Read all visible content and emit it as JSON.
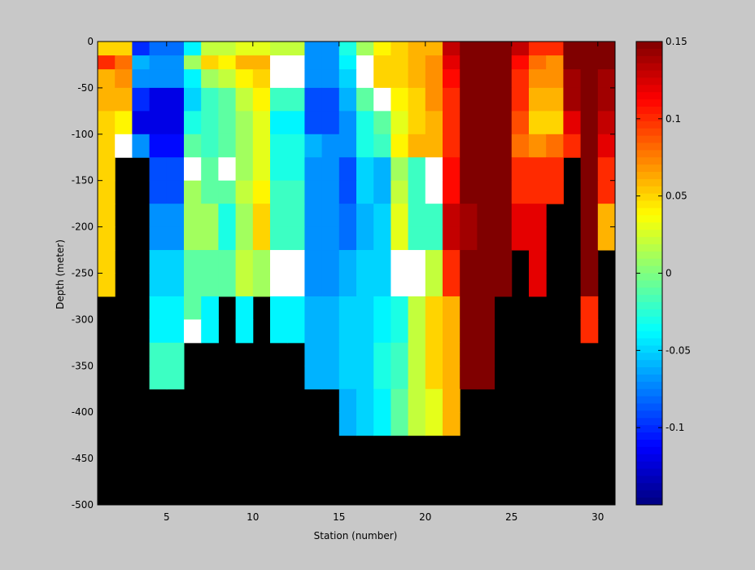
{
  "chart_data": {
    "type": "heatmap",
    "title": "",
    "xlabel": "Station (number)",
    "ylabel": "Depth (meter)",
    "xlim": [
      1,
      31
    ],
    "ylim": [
      -500,
      0
    ],
    "x_ticks": [
      5,
      10,
      15,
      20,
      25,
      30
    ],
    "y_ticks": [
      0,
      -50,
      -100,
      -150,
      -200,
      -250,
      -300,
      -350,
      -400,
      -450,
      -500
    ],
    "colorbar": {
      "colormap": "jet",
      "clim": [
        -0.15,
        0.15
      ],
      "ticks": [
        0.15,
        0.1,
        0.05,
        0,
        -0.05,
        -0.1
      ],
      "tick_labels": [
        "0.15",
        "0.1",
        "0.05",
        "0",
        "-0.05",
        "-0.1"
      ]
    },
    "colors": {
      "figure_background": "#c8c8c8",
      "no_data": "#000000",
      "center": "#ffffff"
    },
    "stations": [
      1,
      2,
      3,
      4,
      5,
      6,
      7,
      8,
      9,
      10,
      11,
      12,
      13,
      14,
      15,
      16,
      17,
      18,
      19,
      20,
      21,
      22,
      23,
      24,
      25,
      26,
      27,
      28,
      29,
      30,
      31
    ],
    "depths": [
      -2.5,
      -15,
      -30,
      -50,
      -75,
      -100,
      -125,
      -150,
      -175,
      -200,
      -225,
      -250,
      -275,
      -300,
      -325,
      -350,
      -375,
      -400,
      -425,
      -450,
      -475,
      -500
    ],
    "values": [
      [
        0.05,
        0.05,
        -0.1,
        -0.08,
        -0.08,
        -0.04,
        0.02,
        0.02,
        0.03,
        0.03,
        0.02,
        0.02,
        -0.07,
        -0.07,
        -0.03,
        0.01,
        0.04,
        0.05,
        0.06,
        0.06,
        0.13,
        0.15,
        0.15,
        0.15,
        0.13,
        0.1,
        0.1,
        0.15,
        0.15,
        0.15,
        0.06
      ],
      [
        0.1,
        0.08,
        -0.06,
        -0.07,
        -0.07,
        0.01,
        0.05,
        0.04,
        0.06,
        0.06,
        0.0,
        0.0,
        -0.07,
        -0.07,
        -0.04,
        0.0,
        0.05,
        0.05,
        0.06,
        0.07,
        0.12,
        0.15,
        0.15,
        0.15,
        0.11,
        0.08,
        0.07,
        0.15,
        0.15,
        0.15,
        0.05
      ],
      [
        0.06,
        0.07,
        -0.07,
        -0.07,
        -0.07,
        -0.04,
        0.01,
        0.02,
        0.04,
        0.05,
        0.0,
        0.0,
        -0.07,
        -0.07,
        -0.05,
        0.0,
        0.05,
        0.05,
        0.06,
        0.07,
        0.11,
        0.15,
        0.15,
        0.15,
        0.1,
        0.07,
        0.07,
        0.14,
        0.15,
        0.14,
        0.05
      ],
      [
        0.06,
        0.06,
        -0.1,
        -0.12,
        -0.12,
        -0.05,
        -0.02,
        -0.01,
        0.02,
        0.04,
        -0.02,
        -0.02,
        -0.09,
        -0.09,
        -0.06,
        -0.01,
        0.0,
        0.04,
        0.05,
        0.07,
        0.1,
        0.15,
        0.15,
        0.15,
        0.1,
        0.06,
        0.06,
        0.14,
        0.15,
        0.14,
        0.05
      ],
      [
        0.05,
        0.04,
        -0.12,
        -0.12,
        -0.12,
        -0.03,
        -0.02,
        -0.01,
        0.01,
        0.03,
        -0.04,
        -0.04,
        -0.09,
        -0.09,
        -0.07,
        -0.03,
        -0.01,
        0.03,
        0.05,
        0.06,
        0.1,
        0.15,
        0.15,
        0.15,
        0.09,
        0.05,
        0.05,
        0.12,
        0.15,
        0.13,
        0.05
      ],
      [
        0.05,
        0.0,
        -0.07,
        -0.11,
        -0.11,
        -0.01,
        -0.02,
        -0.01,
        0.01,
        0.03,
        -0.03,
        -0.03,
        -0.06,
        -0.07,
        -0.07,
        -0.03,
        -0.02,
        0.04,
        0.06,
        0.06,
        0.1,
        0.15,
        0.15,
        0.15,
        0.08,
        0.07,
        0.08,
        0.1,
        0.15,
        0.12,
        0.05
      ],
      [
        0.05,
        null,
        null,
        -0.09,
        -0.09,
        0.0,
        -0.01,
        0.0,
        0.01,
        0.03,
        -0.03,
        -0.03,
        -0.07,
        -0.07,
        -0.09,
        -0.05,
        -0.06,
        0.01,
        -0.02,
        0.0,
        0.11,
        0.15,
        0.15,
        0.15,
        0.1,
        0.1,
        0.1,
        null,
        0.15,
        0.1,
        0.05
      ],
      [
        0.05,
        null,
        null,
        -0.09,
        -0.09,
        0.01,
        -0.01,
        -0.01,
        0.02,
        0.04,
        -0.02,
        -0.02,
        -0.07,
        -0.07,
        -0.09,
        -0.05,
        -0.06,
        0.02,
        -0.02,
        0.0,
        0.11,
        0.15,
        0.15,
        0.15,
        0.1,
        0.1,
        0.1,
        null,
        0.15,
        0.1,
        0.05
      ],
      [
        0.05,
        null,
        null,
        -0.07,
        -0.07,
        0.01,
        0.01,
        -0.03,
        0.01,
        0.05,
        -0.02,
        -0.02,
        -0.07,
        -0.07,
        -0.08,
        -0.06,
        -0.05,
        0.03,
        -0.02,
        -0.02,
        0.13,
        0.14,
        0.15,
        0.15,
        0.12,
        0.12,
        null,
        null,
        0.15,
        0.06,
        null
      ],
      [
        0.05,
        null,
        null,
        -0.07,
        -0.07,
        0.01,
        0.01,
        -0.03,
        0.01,
        0.05,
        -0.02,
        -0.02,
        -0.07,
        -0.07,
        -0.08,
        -0.06,
        -0.05,
        0.03,
        -0.02,
        -0.02,
        0.13,
        0.14,
        0.15,
        0.15,
        0.12,
        0.12,
        null,
        null,
        0.15,
        0.06,
        null
      ],
      [
        0.05,
        null,
        null,
        -0.05,
        -0.05,
        -0.01,
        -0.01,
        -0.01,
        0.02,
        0.01,
        0.0,
        0.0,
        -0.07,
        -0.07,
        -0.06,
        -0.05,
        -0.05,
        0.0,
        0.0,
        0.02,
        0.1,
        0.15,
        0.15,
        0.15,
        null,
        0.12,
        null,
        null,
        0.15,
        null,
        null
      ],
      [
        0.05,
        null,
        null,
        -0.05,
        -0.05,
        -0.01,
        -0.01,
        -0.01,
        0.02,
        0.01,
        0.0,
        0.0,
        -0.07,
        -0.07,
        -0.06,
        -0.05,
        -0.05,
        0.0,
        0.0,
        0.02,
        0.1,
        0.15,
        0.15,
        0.15,
        null,
        0.12,
        null,
        null,
        0.15,
        null,
        null
      ],
      [
        null,
        null,
        null,
        -0.04,
        -0.04,
        -0.01,
        -0.04,
        null,
        -0.04,
        null,
        -0.04,
        -0.04,
        -0.06,
        -0.06,
        -0.05,
        -0.05,
        -0.04,
        -0.03,
        0.02,
        0.05,
        0.06,
        0.15,
        0.15,
        null,
        null,
        null,
        null,
        null,
        0.1,
        null,
        null
      ],
      [
        null,
        null,
        null,
        -0.04,
        -0.04,
        0.0,
        -0.04,
        null,
        -0.04,
        null,
        -0.04,
        -0.04,
        -0.06,
        -0.06,
        -0.05,
        -0.05,
        -0.04,
        -0.03,
        0.02,
        0.05,
        0.06,
        0.15,
        0.15,
        null,
        null,
        null,
        null,
        null,
        0.1,
        null,
        null
      ],
      [
        null,
        null,
        null,
        -0.02,
        -0.02,
        null,
        null,
        null,
        null,
        null,
        null,
        null,
        -0.06,
        -0.06,
        -0.05,
        -0.05,
        -0.03,
        -0.02,
        0.02,
        0.05,
        0.06,
        0.15,
        0.15,
        null,
        null,
        null,
        null,
        null,
        null,
        null,
        null
      ],
      [
        null,
        null,
        null,
        -0.02,
        -0.02,
        null,
        null,
        null,
        null,
        null,
        null,
        null,
        -0.06,
        -0.06,
        -0.05,
        -0.05,
        -0.03,
        -0.02,
        0.02,
        0.05,
        0.06,
        0.15,
        0.15,
        null,
        null,
        null,
        null,
        null,
        null,
        null,
        null
      ],
      [
        null,
        null,
        null,
        null,
        null,
        null,
        null,
        null,
        null,
        null,
        null,
        null,
        null,
        null,
        -0.06,
        -0.05,
        -0.04,
        -0.01,
        0.02,
        0.03,
        0.06,
        null,
        null,
        null,
        null,
        null,
        null,
        null,
        null,
        null,
        null
      ],
      [
        null,
        null,
        null,
        null,
        null,
        null,
        null,
        null,
        null,
        null,
        null,
        null,
        null,
        null,
        -0.06,
        -0.05,
        -0.04,
        -0.01,
        0.02,
        0.03,
        0.06,
        null,
        null,
        null,
        null,
        null,
        null,
        null,
        null,
        null,
        null
      ],
      [
        null,
        null,
        null,
        null,
        null,
        null,
        null,
        null,
        null,
        null,
        null,
        null,
        null,
        null,
        null,
        null,
        null,
        null,
        null,
        null,
        null,
        null,
        null,
        null,
        null,
        null,
        null,
        null,
        null,
        null,
        null
      ],
      [
        null,
        null,
        null,
        null,
        null,
        null,
        null,
        null,
        null,
        null,
        null,
        null,
        null,
        null,
        null,
        null,
        null,
        null,
        null,
        null,
        null,
        null,
        null,
        null,
        null,
        null,
        null,
        null,
        null,
        null,
        null
      ],
      [
        null,
        null,
        null,
        null,
        null,
        null,
        null,
        null,
        null,
        null,
        null,
        null,
        null,
        null,
        null,
        null,
        null,
        null,
        null,
        null,
        null,
        null,
        null,
        null,
        null,
        null,
        null,
        null,
        null,
        null,
        null
      ],
      [
        null,
        null,
        null,
        null,
        null,
        null,
        null,
        null,
        null,
        null,
        null,
        null,
        null,
        null,
        null,
        null,
        null,
        null,
        null,
        null,
        null,
        null,
        null,
        null,
        null,
        null,
        null,
        null,
        null,
        null,
        null
      ]
    ]
  }
}
